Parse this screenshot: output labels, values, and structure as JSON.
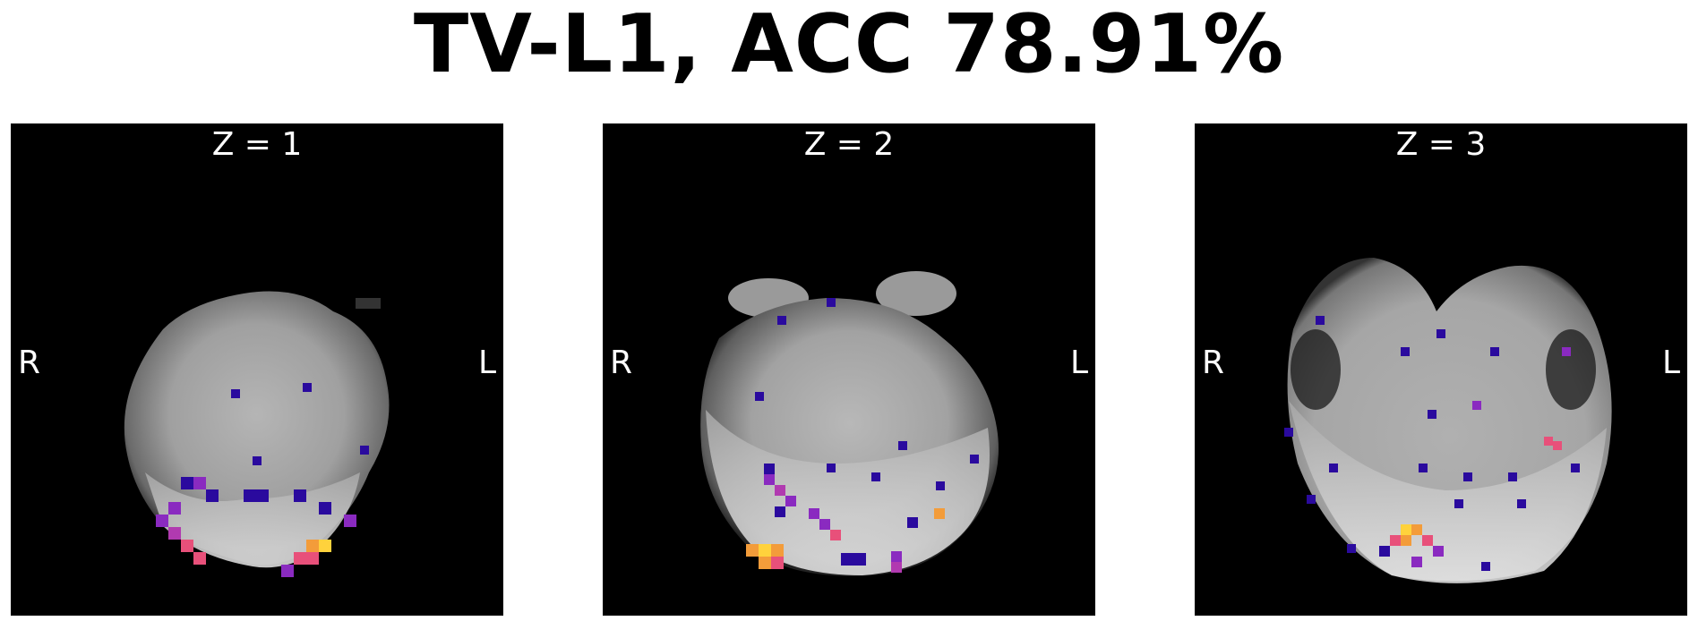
{
  "title": "TV-L1, ACC 78.91%",
  "colors": {
    "background": "#000000",
    "text": "#ffffff",
    "overlay_low": "#2a0a9e",
    "overlay_mid": "#8a2ac0",
    "overlay_high": "#e8507a",
    "overlay_peak": "#ffd23c"
  },
  "panels": [
    {
      "slice_label": "Z = 1",
      "right_label": "R",
      "left_label": "L"
    },
    {
      "slice_label": "Z = 2",
      "right_label": "R",
      "left_label": "L"
    },
    {
      "slice_label": "Z = 3",
      "right_label": "R",
      "left_label": "L"
    }
  ]
}
